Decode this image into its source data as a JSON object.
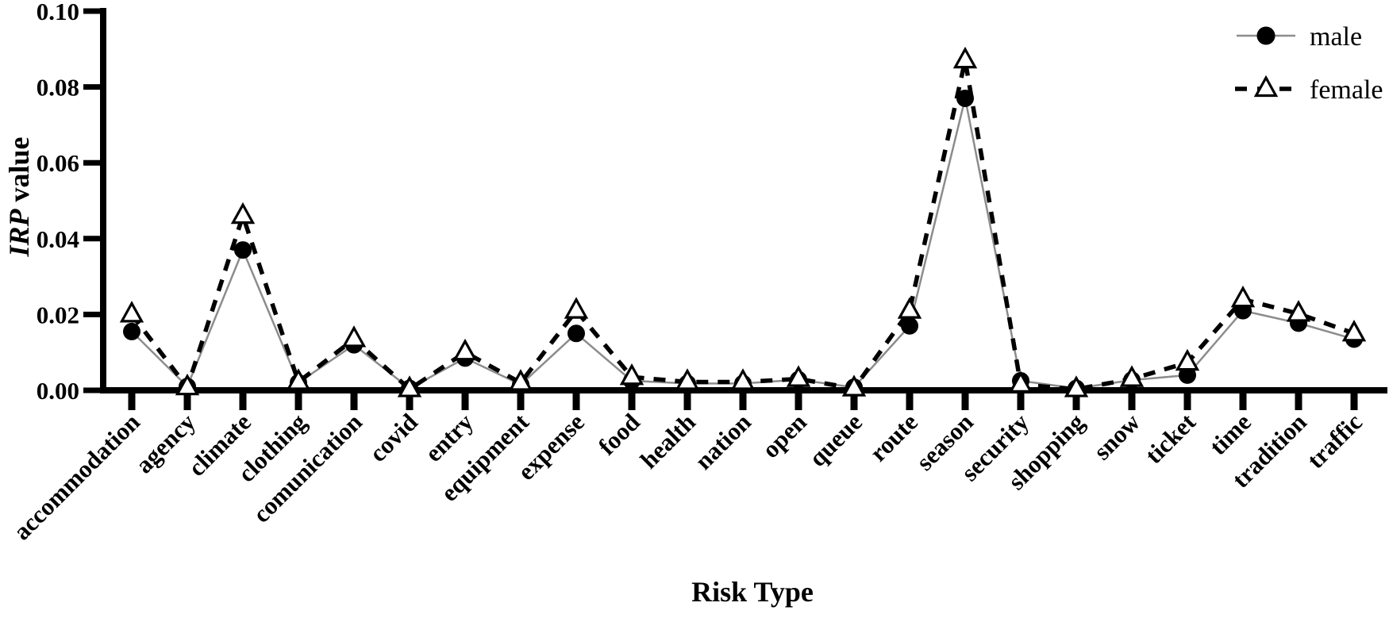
{
  "figure": {
    "background_color": "#ffffff",
    "axis_color": "#000000",
    "x_axis_title": "Risk Type",
    "y_axis_title_italic": "IRP",
    "y_axis_title_rest": " value"
  },
  "legend": {
    "entries": [
      {
        "label": "male",
        "marker": "filled-circle-icon",
        "line_style": "solid"
      },
      {
        "label": "female",
        "marker": "open-triangle-icon",
        "line_style": "dashed"
      }
    ],
    "position": "top-right"
  },
  "chart_data": {
    "type": "line",
    "title": "",
    "xlabel": "Risk Type",
    "ylabel": "IRP value",
    "ylim": [
      0.0,
      0.1
    ],
    "yticks": [
      0.0,
      0.02,
      0.04,
      0.06,
      0.08,
      0.1
    ],
    "ytick_labels": [
      "0.00",
      "0.02",
      "0.04",
      "0.06",
      "0.08",
      "0.10"
    ],
    "grid": false,
    "legend_position": "top-right",
    "categories": [
      "accommodation",
      "agency",
      "climate",
      "clothing",
      "comunication",
      "covid",
      "entry",
      "equipment",
      "expense",
      "food",
      "health",
      "nation",
      "open",
      "queue",
      "route",
      "season",
      "security",
      "shopping",
      "snow",
      "ticket",
      "time",
      "tradition",
      "traffic"
    ],
    "series": [
      {
        "name": "male",
        "marker": "filled-circle",
        "line_style": "solid",
        "line_color": "#8c8c8c",
        "marker_fill": "#000000",
        "marker_stroke": "#000000",
        "values": [
          0.0155,
          0.001,
          0.037,
          0.002,
          0.012,
          0.0005,
          0.0085,
          0.0015,
          0.015,
          0.0025,
          0.0018,
          0.0018,
          0.0028,
          0.0008,
          0.017,
          0.077,
          0.0025,
          0.0005,
          0.0027,
          0.004,
          0.021,
          0.0177,
          0.0135
        ]
      },
      {
        "name": "female",
        "marker": "open-triangle",
        "line_style": "dashed",
        "line_color": "#000000",
        "marker_fill": "#ffffff",
        "marker_stroke": "#000000",
        "values": [
          0.02,
          0.0008,
          0.046,
          0.0022,
          0.0135,
          0.0003,
          0.01,
          0.002,
          0.021,
          0.0035,
          0.0022,
          0.0022,
          0.003,
          0.0005,
          0.021,
          0.087,
          0.0015,
          0.0003,
          0.003,
          0.0073,
          0.024,
          0.0202,
          0.015
        ]
      }
    ]
  }
}
